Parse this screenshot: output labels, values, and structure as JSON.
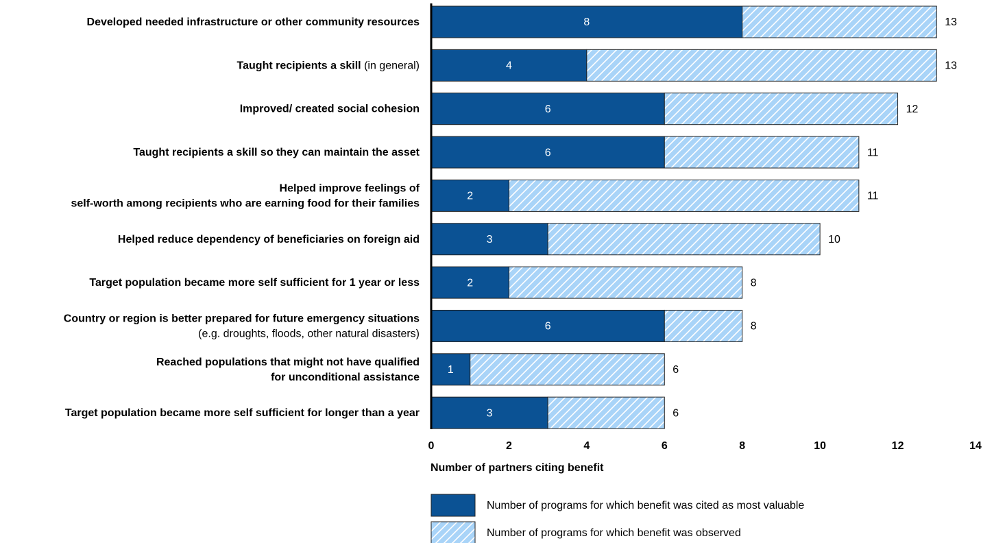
{
  "chart_data": {
    "type": "stacked-bar-horizontal",
    "categories": [
      [
        [
          {
            "text": "Developed needed infrastructure or other community resources",
            "bold": true
          }
        ]
      ],
      [
        [
          {
            "text": "Taught recipients a skill",
            "bold": true
          },
          {
            "text": " (in general)",
            "bold": false
          }
        ]
      ],
      [
        [
          {
            "text": "Improved/ created social cohesion",
            "bold": true
          }
        ]
      ],
      [
        [
          {
            "text": "Taught recipients a skill so they can maintain the asset",
            "bold": true
          }
        ]
      ],
      [
        [
          {
            "text": "Helped improve feelings of",
            "bold": true
          }
        ],
        [
          {
            "text": "self-worth among recipients who are earning food for their families",
            "bold": true
          }
        ]
      ],
      [
        [
          {
            "text": "Helped reduce dependency of beneficiaries on foreign aid",
            "bold": true
          }
        ]
      ],
      [
        [
          {
            "text": "Target population became more self sufficient for 1 year or less",
            "bold": true
          }
        ]
      ],
      [
        [
          {
            "text": "Country or region is better prepared for future emergency situations",
            "bold": true
          }
        ],
        [
          {
            "text": "(e.g. droughts, floods, other natural disasters)",
            "bold": false
          }
        ]
      ],
      [
        [
          {
            "text": "Reached populations that might not have qualified",
            "bold": true
          }
        ],
        [
          {
            "text": "for unconditional assistance",
            "bold": true
          }
        ]
      ],
      [
        [
          {
            "text": "Target population became more self sufficient for longer than a year",
            "bold": true
          }
        ]
      ]
    ],
    "series": [
      {
        "name": "Number of programs for which benefit was cited as most valuable",
        "color": "#0b5294",
        "hatch": false,
        "values": [
          8,
          4,
          6,
          6,
          2,
          3,
          2,
          6,
          1,
          3
        ]
      },
      {
        "name": "Number of programs for which benefit was observed",
        "color": "#a9d4f8",
        "hatch": true,
        "values": [
          5,
          9,
          6,
          5,
          9,
          7,
          6,
          2,
          5,
          3
        ]
      }
    ],
    "totals": [
      13,
      13,
      12,
      11,
      11,
      10,
      8,
      8,
      6,
      6
    ],
    "x_label": "Number of partners citing benefit",
    "xlim": [
      0,
      14
    ],
    "xticks": [
      0,
      2,
      4,
      6,
      8,
      10,
      12,
      14
    ],
    "grid": false
  }
}
